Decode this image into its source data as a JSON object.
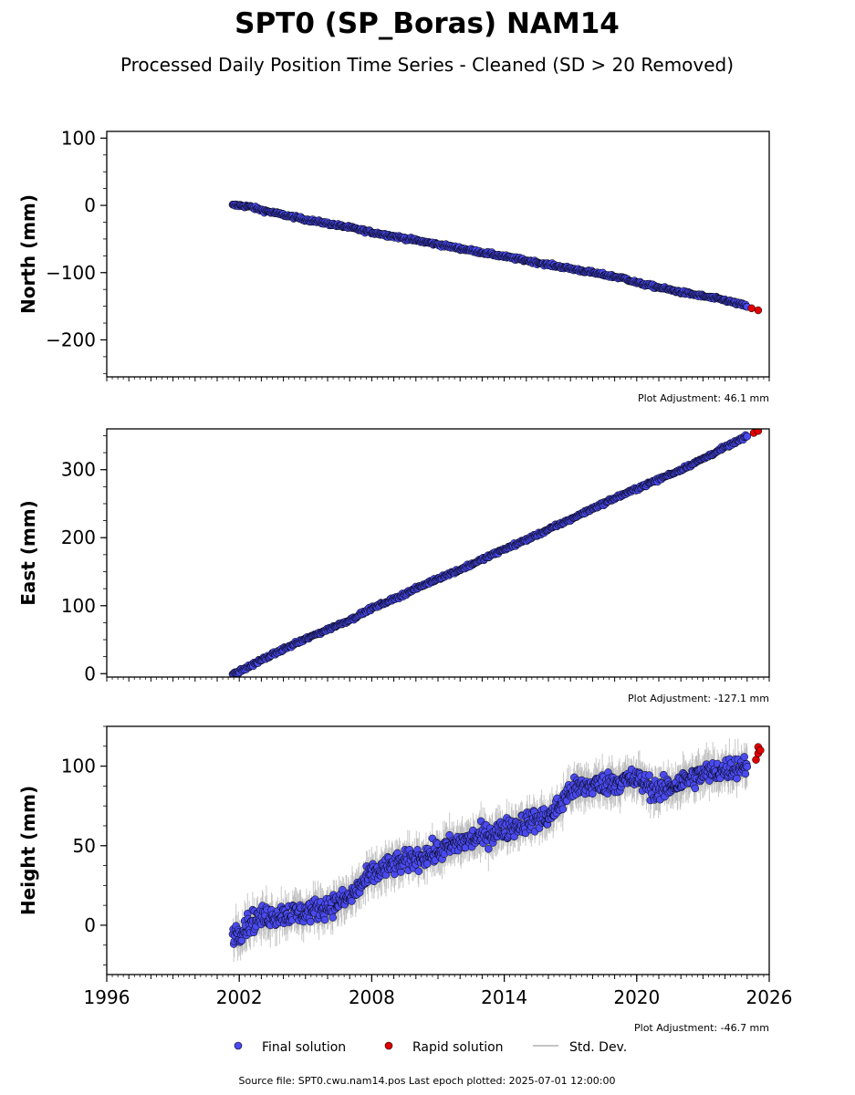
{
  "title": "SPT0 (SP_Boras) NAM14",
  "subtitle": "Processed Daily Position Time Series - Cleaned (SD > 20 Removed)",
  "footer": "Source file: SPT0.cwu.nam14.pos  Last epoch plotted: 2025-07-01 12:00:00",
  "legend": {
    "final": "Final solution",
    "rapid": "Rapid solution",
    "std": "Std. Dev."
  },
  "colors": {
    "final": "#4a4af0",
    "rapid": "#e00000",
    "std": "#b0b0b0",
    "edge": "#000000"
  },
  "chart_data": [
    {
      "type": "scatter",
      "ylabel": "North (mm)",
      "adjustment": "Plot Adjustment: 46.1 mm",
      "xlim": [
        1996,
        2026
      ],
      "ylim": [
        -255,
        110
      ],
      "yticks": [
        100,
        0,
        -100,
        -200
      ],
      "xticks": [],
      "series": [
        {
          "name": "Final solution",
          "x": [
            2001.7,
            2002.0,
            2002.5,
            2003.0,
            2004.0,
            2005.0,
            2006.0,
            2007.0,
            2008.0,
            2009.0,
            2010.0,
            2011.0,
            2012.0,
            2013.0,
            2014.0,
            2015.0,
            2016.0,
            2017.0,
            2018.0,
            2019.0,
            2019.5,
            2020.0,
            2021.0,
            2022.0,
            2023.0,
            2024.0,
            2025.0
          ],
          "y": [
            0,
            0,
            -2,
            -7,
            -14,
            -21,
            -27,
            -33,
            -40,
            -46,
            -52,
            -58,
            -64,
            -70,
            -76,
            -82,
            -88,
            -94,
            -100,
            -106,
            -109,
            -115,
            -122,
            -129,
            -135,
            -141,
            -150
          ]
        },
        {
          "name": "Rapid solution",
          "x": [
            2025.2,
            2025.5
          ],
          "y": [
            -153,
            -156
          ]
        }
      ]
    },
    {
      "type": "scatter",
      "ylabel": "East (mm)",
      "adjustment": "Plot Adjustment: -127.1 mm",
      "xlim": [
        1996,
        2026
      ],
      "ylim": [
        -5,
        360
      ],
      "yticks": [
        300,
        200,
        100,
        0
      ],
      "xticks": [],
      "series": [
        {
          "name": "Final solution",
          "x": [
            2001.7,
            2002.0,
            2003.0,
            2004.0,
            2005.0,
            2006.0,
            2007.0,
            2008.0,
            2009.0,
            2010.0,
            2011.0,
            2012.0,
            2013.0,
            2014.0,
            2015.0,
            2016.0,
            2017.0,
            2018.0,
            2019.0,
            2020.0,
            2021.0,
            2022.0,
            2023.0,
            2024.0,
            2025.0
          ],
          "y": [
            0,
            3,
            20,
            36,
            51,
            65,
            79,
            96,
            110,
            125,
            140,
            153,
            168,
            183,
            197,
            212,
            227,
            243,
            258,
            272,
            286,
            300,
            316,
            333,
            349
          ]
        },
        {
          "name": "Rapid solution",
          "x": [
            2025.3,
            2025.5
          ],
          "y": [
            354,
            357
          ]
        }
      ]
    },
    {
      "type": "scatter",
      "ylabel": "Height (mm)",
      "adjustment": "Plot Adjustment: -46.7 mm",
      "xlim": [
        1996,
        2026
      ],
      "ylim": [
        -31,
        125
      ],
      "yticks": [
        100,
        50,
        0
      ],
      "xticks": [
        "1996",
        "2002",
        "2008",
        "2014",
        "2020",
        "2026"
      ],
      "xtick_values": [
        1996,
        2002,
        2008,
        2014,
        2020,
        2026
      ],
      "series": [
        {
          "name": "Final solution",
          "x": [
            2001.7,
            2002.0,
            2002.5,
            2003.0,
            2004.0,
            2005.0,
            2006.0,
            2007.0,
            2007.5,
            2008.0,
            2009.0,
            2010.0,
            2011.0,
            2012.0,
            2013.0,
            2014.0,
            2015.0,
            2016.0,
            2016.5,
            2017.0,
            2018.0,
            2019.0,
            2020.0,
            2021.0,
            2022.0,
            2023.0,
            2024.0,
            2025.0
          ],
          "y": [
            -5,
            -4,
            2,
            5,
            7,
            8,
            12,
            17,
            25,
            32,
            38,
            42,
            46,
            52,
            56,
            60,
            65,
            68,
            75,
            85,
            88,
            90,
            92,
            84,
            90,
            95,
            98,
            101
          ]
        },
        {
          "name": "Rapid solution",
          "x": [
            2025.4,
            2025.5,
            2025.5,
            2025.6
          ],
          "y": [
            104,
            108,
            112,
            110
          ]
        }
      ]
    }
  ]
}
